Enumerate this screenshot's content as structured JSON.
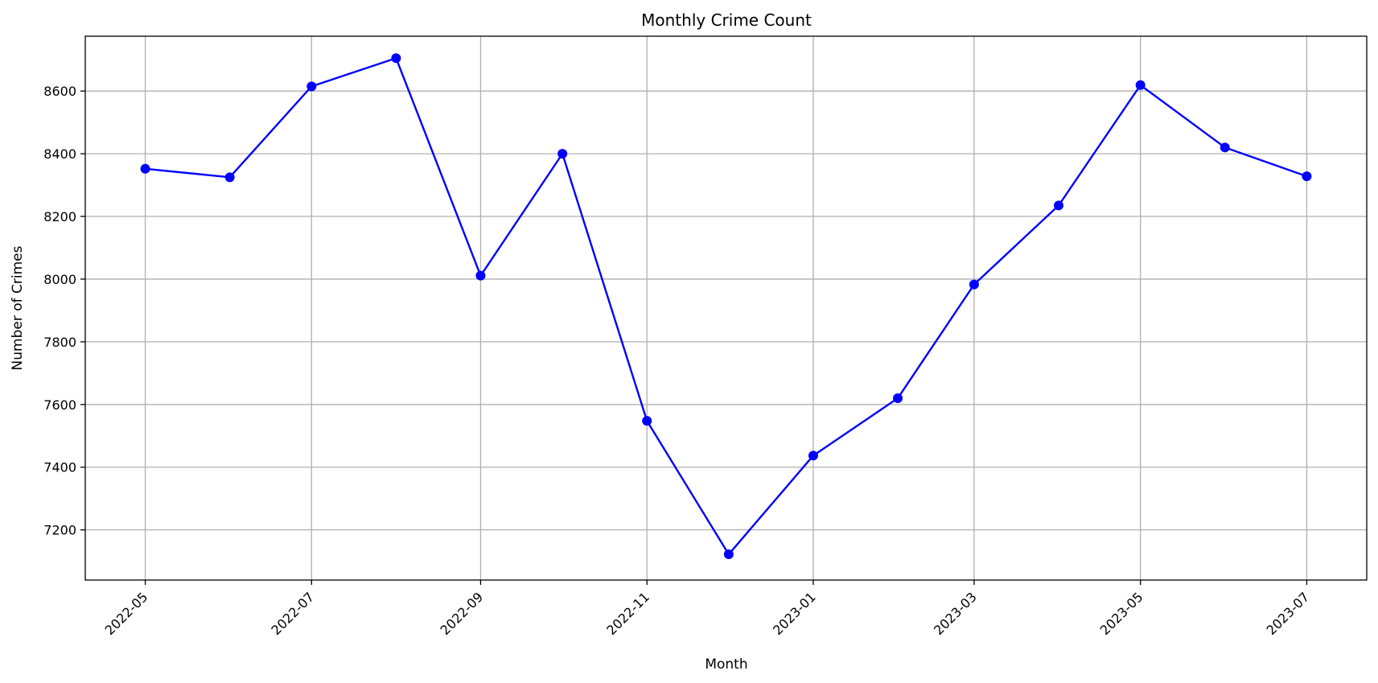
{
  "chart_data": {
    "type": "line",
    "title": "Monthly Crime Count",
    "xlabel": "Month",
    "ylabel": "Number of Crimes",
    "grid": true,
    "legend": "none",
    "x_ticks": [
      "2022-05",
      "2022-07",
      "2022-09",
      "2022-11",
      "2023-01",
      "2023-03",
      "2023-05",
      "2023-07"
    ],
    "y_ticks": [
      7200,
      7400,
      7600,
      7800,
      8000,
      8200,
      8400,
      8600
    ],
    "ylim": [
      7040,
      8775
    ],
    "xlim": [
      "2022-04-09",
      "2023-07-23"
    ],
    "series": [
      {
        "color": "#0000ff",
        "marker": "circle",
        "x": [
          "2022-05-01",
          "2022-06-01",
          "2022-07-01",
          "2022-08-01",
          "2022-09-01",
          "2022-10-01",
          "2022-11-01",
          "2022-12-01",
          "2023-01-01",
          "2023-02-01",
          "2023-03-01",
          "2023-04-01",
          "2023-05-01",
          "2023-06-01",
          "2023-07-01"
        ],
        "y": [
          8352,
          8325,
          8615,
          8705,
          8011,
          8400,
          7548,
          7122,
          7437,
          7620,
          7983,
          8235,
          8619,
          8420,
          8328
        ]
      }
    ]
  }
}
